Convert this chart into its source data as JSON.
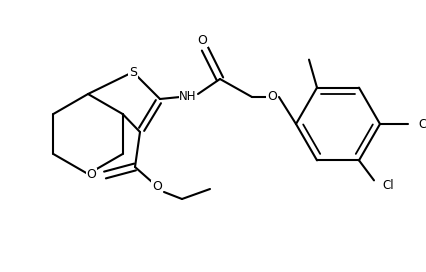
{
  "bg_color": "#ffffff",
  "line_color": "#000000",
  "lw": 1.5,
  "figsize": [
    4.26,
    2.72
  ],
  "dpi": 100,
  "xlim": [
    0,
    426
  ],
  "ylim": [
    0,
    272
  ]
}
